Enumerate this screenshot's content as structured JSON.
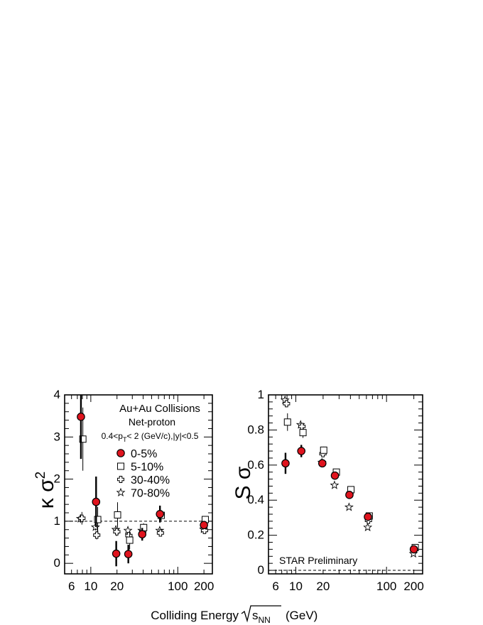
{
  "x_axis_label": "Colliding Energy",
  "x_axis_label_sym": "s",
  "x_axis_label_sub": "NN",
  "x_axis_label_unit": "(GeV)",
  "colors": {
    "central": "#e0141e",
    "axis": "#000000"
  },
  "chart_data": [
    {
      "type": "scatter",
      "id": "kappa-sigma2",
      "ylabel": "κ σ",
      "ylabel_sup": "2",
      "xscale": "log",
      "xlim": [
        5,
        250
      ],
      "ylim": [
        -0.25,
        4
      ],
      "xticks": [
        6,
        10,
        20,
        100,
        200
      ],
      "yticks": [
        0,
        1,
        2,
        3,
        4
      ],
      "reference_line": 1,
      "annotations": {
        "title": "Au+Au Collisions",
        "subtitle": "Net-proton",
        "cuts": "0.4<p",
        "cuts_sub": "T",
        "cuts_rest": "< 2 (GeV/c),|y|<0.5"
      },
      "series": [
        {
          "name": "0-5%",
          "marker": "filled-circle",
          "color": "#e0141e",
          "x": [
            7.7,
            11.5,
            19.6,
            27,
            39,
            62.4,
            200
          ],
          "y": [
            3.48,
            1.46,
            0.23,
            0.22,
            0.69,
            1.17,
            0.91
          ],
          "err": [
            1.0,
            0.6,
            0.3,
            0.22,
            0.15,
            0.2,
            0.06
          ]
        },
        {
          "name": "5-10%",
          "marker": "open-square",
          "color": "#000000",
          "x": [
            8.1,
            12.0,
            20.3,
            28,
            40.5,
            64.5,
            207
          ],
          "y": [
            2.95,
            1.04,
            1.15,
            0.55,
            0.85,
            1.14,
            1.04
          ],
          "err": [
            0.75,
            0.3,
            0.3,
            0.22,
            0.1,
            0.12,
            0.05
          ]
        },
        {
          "name": "30-40%",
          "marker": "open-cross",
          "color": "#000000",
          "x": [
            7.9,
            11.7,
            19.9,
            27.4,
            39.5,
            63.2,
            203
          ],
          "y": [
            1.07,
            0.67,
            0.75,
            0.66,
            0.76,
            0.72,
            0.78
          ],
          "err": [
            0.15,
            0.1,
            0.1,
            0.08,
            0.05,
            0.05,
            0.03
          ]
        },
        {
          "name": "70-80%",
          "marker": "open-star",
          "color": "#000000",
          "x": [
            7.6,
            11.3,
            19.4,
            26.7,
            38.6,
            62,
            198
          ],
          "y": [
            1.06,
            0.86,
            0.8,
            0.78,
            0.78,
            0.78,
            0.81
          ],
          "err": [
            0.1,
            0.08,
            0.06,
            0.05,
            0.04,
            0.03,
            0.02
          ]
        }
      ],
      "legend_position": "top-right"
    },
    {
      "type": "scatter",
      "id": "s-sigma",
      "ylabel": "S σ",
      "xscale": "log",
      "xlim": [
        5,
        250
      ],
      "ylim": [
        -0.02,
        1
      ],
      "xticks": [
        6,
        10,
        20,
        100,
        200
      ],
      "yticks": [
        0,
        0.2,
        0.4,
        0.6,
        0.8,
        1
      ],
      "reference_line": 0,
      "annotations": {
        "watermark": "STAR Preliminary"
      },
      "series": [
        {
          "name": "0-5%",
          "marker": "filled-circle",
          "color": "#e0141e",
          "x": [
            7.7,
            11.5,
            19.6,
            27,
            39,
            62.4,
            200
          ],
          "y": [
            0.61,
            0.68,
            0.61,
            0.54,
            0.43,
            0.305,
            0.12
          ],
          "err": [
            0.06,
            0.035,
            0.02,
            0.015,
            0.015,
            0.01,
            0.005
          ]
        },
        {
          "name": "5-10%",
          "marker": "open-square",
          "color": "#000000",
          "x": [
            8.1,
            12.0,
            20.3,
            28,
            40.5,
            64.5,
            207
          ],
          "y": [
            0.845,
            0.785,
            0.685,
            0.56,
            0.46,
            0.31,
            0.13
          ],
          "err": [
            0.05,
            0.03,
            0.02,
            0.015,
            0.012,
            0.008,
            0.004
          ]
        },
        {
          "name": "30-40%",
          "marker": "open-cross",
          "color": "#000000",
          "x": [
            7.9,
            11.7,
            19.9,
            27.4,
            39.5,
            63.2,
            203
          ],
          "y": [
            0.95,
            0.82,
            0.665,
            0.55,
            0.44,
            0.285,
            0.12
          ],
          "err": [
            0.02,
            0.015,
            0.01,
            0.008,
            0.007,
            0.005,
            0.003
          ]
        },
        {
          "name": "70-80%",
          "marker": "open-star",
          "color": "#000000",
          "x": [
            7.6,
            11.3,
            19.4,
            26.7,
            38.6,
            62,
            198
          ],
          "y": [
            0.97,
            0.83,
            0.615,
            0.485,
            0.36,
            0.245,
            0.095
          ],
          "err": [
            0.02,
            0.015,
            0.01,
            0.007,
            0.006,
            0.004,
            0.002
          ]
        }
      ]
    }
  ]
}
